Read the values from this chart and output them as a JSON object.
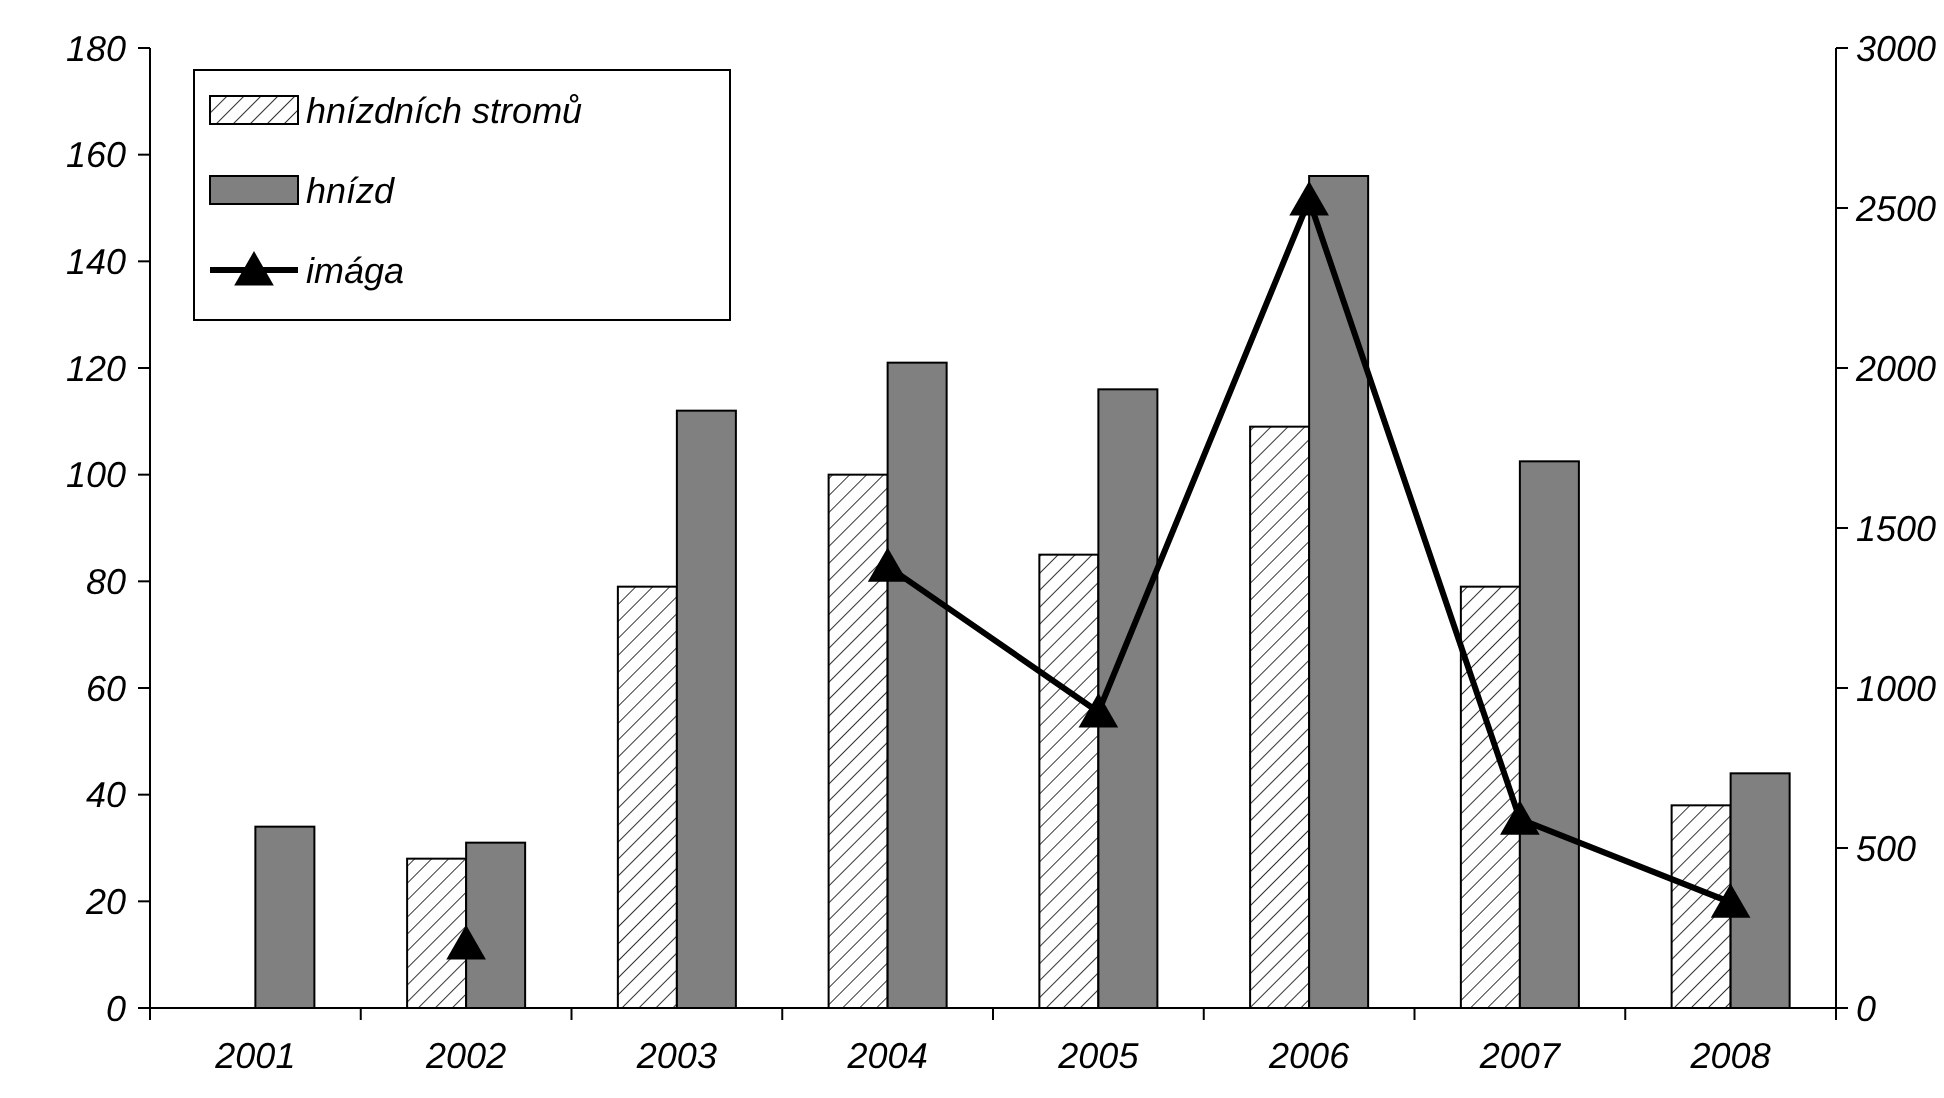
{
  "chart_data": {
    "type": "bar",
    "categories": [
      "2001",
      "2002",
      "2003",
      "2004",
      "2005",
      "2006",
      "2007",
      "2008"
    ],
    "series": [
      {
        "name": "hnízdních stromů",
        "color": "#000000",
        "values": [
          null,
          28,
          79,
          100,
          85,
          109,
          79,
          38
        ]
      },
      {
        "name": "hnízd",
        "color": "#808080",
        "values": [
          34,
          31,
          112,
          121,
          116,
          156,
          102.5,
          44
        ]
      },
      {
        "name": "imága",
        "type": "line",
        "axis": "y2",
        "color": "#000000",
        "marker": "triangle",
        "values": [
          null,
          200,
          null,
          1380,
          925,
          2525,
          590,
          330
        ]
      }
    ],
    "ylim": [
      0,
      180
    ],
    "yticks": [
      0,
      20,
      40,
      60,
      80,
      100,
      120,
      140,
      160,
      180
    ],
    "y2lim": [
      0,
      3000
    ],
    "y2ticks": [
      0,
      500,
      1000,
      1500,
      2000,
      2500,
      3000
    ],
    "grid": false,
    "legend": "top left"
  }
}
